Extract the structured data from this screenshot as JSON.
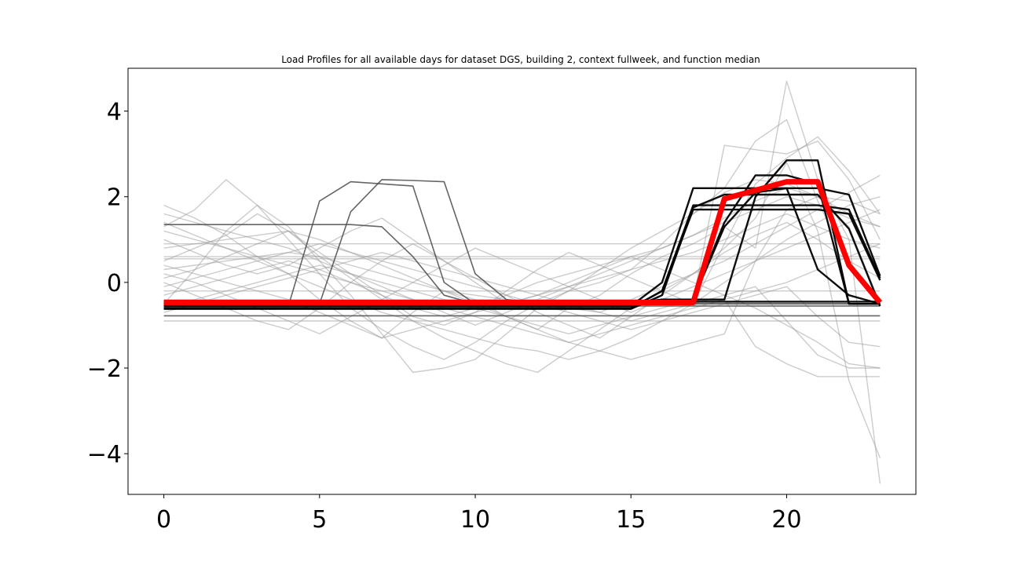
{
  "chart_data": {
    "type": "line",
    "title": "Load Profiles for all available days for dataset DGS, building 2, context fullweek, and function median",
    "xlabel": "",
    "ylabel": "",
    "xlim": [
      -1.15,
      24.15
    ],
    "ylim": [
      -4.95,
      5.0
    ],
    "x_ticks": [
      0,
      5,
      10,
      15,
      20
    ],
    "y_ticks": [
      -4,
      -2,
      0,
      2,
      4
    ],
    "x_tick_labels": [
      "0",
      "5",
      "10",
      "15",
      "20"
    ],
    "y_tick_labels": [
      "−4",
      "−2",
      "0",
      "2",
      "4"
    ],
    "grid": false,
    "legend": "none",
    "x": [
      0,
      1,
      2,
      3,
      4,
      5,
      6,
      7,
      8,
      9,
      10,
      11,
      12,
      13,
      14,
      15,
      16,
      17,
      18,
      19,
      20,
      21,
      22,
      23
    ],
    "colors": {
      "background_series": "#9a9a9a",
      "dark_series": "#000000",
      "medium_series": "#4a4a4a",
      "median": "#ff0000"
    },
    "series": [
      {
        "style": "median",
        "values": [
          -0.47,
          -0.47,
          -0.47,
          -0.47,
          -0.47,
          -0.47,
          -0.47,
          -0.47,
          -0.47,
          -0.47,
          -0.47,
          -0.47,
          -0.47,
          -0.47,
          -0.47,
          -0.47,
          -0.47,
          -0.47,
          1.95,
          2.15,
          2.35,
          2.35,
          0.4,
          -0.47
        ]
      },
      {
        "style": "dark",
        "values": [
          -0.6,
          -0.6,
          -0.6,
          -0.6,
          -0.6,
          -0.6,
          -0.6,
          -0.6,
          -0.6,
          -0.6,
          -0.6,
          -0.6,
          -0.6,
          -0.6,
          -0.6,
          -0.6,
          -0.2,
          1.8,
          1.8,
          1.8,
          1.8,
          1.8,
          1.7,
          0.1
        ]
      },
      {
        "style": "dark",
        "values": [
          -0.55,
          -0.55,
          -0.55,
          -0.55,
          -0.55,
          -0.55,
          -0.55,
          -0.55,
          -0.55,
          -0.55,
          -0.55,
          -0.55,
          -0.55,
          -0.55,
          -0.55,
          -0.55,
          0.0,
          2.2,
          2.2,
          2.2,
          2.2,
          2.2,
          2.05,
          0.15
        ]
      },
      {
        "style": "dark",
        "values": [
          -0.5,
          -0.5,
          -0.5,
          -0.5,
          -0.5,
          -0.5,
          -0.5,
          -0.5,
          -0.5,
          -0.5,
          -0.5,
          -0.5,
          -0.5,
          -0.5,
          -0.5,
          -0.5,
          -0.4,
          -0.4,
          1.4,
          2.5,
          2.5,
          2.3,
          -0.5,
          -0.5
        ]
      },
      {
        "style": "dark",
        "values": [
          -0.5,
          -0.5,
          -0.5,
          -0.5,
          -0.5,
          -0.5,
          -0.5,
          -0.5,
          -0.5,
          -0.5,
          -0.5,
          -0.5,
          -0.5,
          -0.5,
          -0.5,
          -0.5,
          -0.45,
          -0.4,
          -0.4,
          2.0,
          2.85,
          2.85,
          -0.5,
          -0.5
        ]
      },
      {
        "style": "dark",
        "values": [
          -0.6,
          -0.6,
          -0.6,
          -0.6,
          -0.6,
          -0.6,
          -0.6,
          -0.6,
          -0.6,
          -0.6,
          -0.6,
          -0.6,
          -0.6,
          -0.6,
          -0.6,
          -0.6,
          -0.2,
          1.7,
          1.7,
          1.7,
          1.7,
          1.7,
          1.6,
          0.05
        ]
      },
      {
        "style": "dark",
        "values": [
          -0.5,
          -0.5,
          -0.5,
          -0.5,
          -0.5,
          -0.5,
          -0.5,
          -0.5,
          -0.5,
          -0.5,
          -0.5,
          -0.5,
          -0.5,
          -0.5,
          -0.5,
          -0.5,
          -0.4,
          -0.4,
          1.3,
          2.1,
          2.2,
          0.3,
          -0.3,
          -0.5
        ]
      },
      {
        "style": "dark",
        "values": [
          -0.45,
          -0.45,
          -0.45,
          -0.45,
          -0.45,
          -0.45,
          -0.45,
          -0.45,
          -0.45,
          -0.45,
          -0.45,
          -0.45,
          -0.45,
          -0.45,
          -0.45,
          -0.45,
          -0.45,
          -0.45,
          -0.45,
          -0.45,
          -0.45,
          -0.45,
          -0.45,
          -0.45
        ]
      },
      {
        "style": "dark",
        "values": [
          -0.62,
          -0.62,
          -0.62,
          -0.62,
          -0.62,
          -0.62,
          -0.62,
          -0.62,
          -0.62,
          -0.62,
          -0.62,
          -0.62,
          -0.62,
          -0.62,
          -0.62,
          -0.62,
          -0.3,
          1.75,
          2.05,
          2.05,
          2.05,
          2.05,
          1.25,
          -0.55
        ]
      },
      {
        "style": "medium",
        "values": [
          -0.5,
          -0.5,
          -0.5,
          -0.5,
          -0.5,
          -0.5,
          1.65,
          2.4,
          2.38,
          2.35,
          0.2,
          -0.4,
          -0.5,
          -0.5,
          -0.5,
          -0.5,
          -0.5,
          -0.5,
          -0.5,
          -0.5,
          -0.5,
          -0.5,
          -0.5,
          -0.5
        ]
      },
      {
        "style": "medium",
        "values": [
          -0.55,
          -0.55,
          -0.55,
          -0.55,
          -0.55,
          1.9,
          2.35,
          2.3,
          2.25,
          0.0,
          -0.5,
          -0.55,
          -0.55,
          -0.55,
          -0.55,
          -0.55,
          -0.55,
          -0.55,
          -0.55,
          -0.55,
          -0.55,
          -0.55,
          -0.55,
          -0.55
        ]
      },
      {
        "style": "medium",
        "values": [
          1.35,
          1.35,
          1.35,
          1.35,
          1.35,
          1.35,
          1.35,
          1.3,
          0.6,
          -0.3,
          -0.5,
          -0.5,
          -0.5,
          -0.5,
          -0.5,
          -0.5,
          -0.5,
          -0.5,
          -0.5,
          -0.5,
          -0.5,
          -0.5,
          -0.5,
          -0.5
        ]
      },
      {
        "style": "medium",
        "values": [
          -0.78,
          -0.78,
          -0.78,
          -0.78,
          -0.78,
          -0.78,
          -0.78,
          -0.78,
          -0.78,
          -0.78,
          -0.78,
          -0.78,
          -0.78,
          -0.78,
          -0.78,
          -0.78,
          -0.78,
          -0.78,
          -0.78,
          -0.78,
          -0.78,
          -0.78,
          -0.78,
          -0.78
        ]
      },
      {
        "style": "light",
        "values": [
          1.8,
          1.5,
          1.1,
          0.6,
          0.2,
          -0.4,
          -0.9,
          -1.3,
          -0.7,
          -0.2,
          -0.4,
          -0.8,
          -1.1,
          -0.6,
          -0.3,
          0.2,
          0.6,
          0.9,
          1.3,
          0.8,
          4.7,
          2.4,
          1.0,
          -4.7
        ]
      },
      {
        "style": "light",
        "values": [
          1.3,
          1.7,
          2.4,
          1.8,
          1.0,
          0.2,
          -0.6,
          -1.1,
          -1.5,
          -1.8,
          -1.4,
          -0.9,
          -0.5,
          -0.2,
          0.0,
          0.3,
          0.9,
          1.6,
          2.2,
          3.3,
          3.8,
          1.9,
          0.4,
          -0.4
        ]
      },
      {
        "style": "light",
        "values": [
          0.5,
          0.8,
          1.1,
          1.6,
          1.2,
          0.6,
          0.1,
          -0.4,
          -0.9,
          -1.3,
          -1.6,
          -1.9,
          -2.1,
          -1.6,
          -1.1,
          -0.6,
          -0.2,
          0.2,
          0.8,
          1.5,
          2.8,
          1.2,
          -2.3,
          -4.1
        ]
      },
      {
        "style": "light",
        "values": [
          -0.5,
          0.3,
          1.2,
          1.8,
          1.3,
          0.5,
          -0.3,
          -1.2,
          -2.1,
          -2.0,
          -1.8,
          -1.2,
          -0.6,
          -0.2,
          0.3,
          0.8,
          1.2,
          1.6,
          2.1,
          2.4,
          2.3,
          2.0,
          1.3,
          -0.5
        ]
      },
      {
        "style": "light",
        "values": [
          0.3,
          0.4,
          0.5,
          0.6,
          0.7,
          0.6,
          0.4,
          0.2,
          0.0,
          -0.2,
          -0.3,
          -0.4,
          -0.5,
          -0.6,
          -0.7,
          -0.4,
          -0.1,
          0.2,
          0.5,
          0.9,
          1.3,
          1.7,
          2.1,
          2.5
        ]
      },
      {
        "style": "light",
        "values": [
          1.4,
          1.1,
          0.8,
          0.5,
          0.2,
          -0.1,
          -0.4,
          -0.7,
          -0.9,
          -1.1,
          -1.3,
          -1.5,
          -1.6,
          -1.8,
          -1.6,
          -1.3,
          -0.9,
          -0.5,
          0.0,
          0.5,
          1.0,
          1.4,
          1.8,
          2.0
        ]
      },
      {
        "style": "light",
        "values": [
          0.6,
          0.6,
          0.6,
          0.6,
          0.6,
          0.6,
          0.6,
          0.6,
          0.6,
          0.6,
          0.6,
          0.6,
          0.6,
          0.6,
          0.6,
          0.6,
          0.6,
          0.6,
          0.6,
          0.6,
          0.6,
          0.6,
          0.6,
          0.6
        ]
      },
      {
        "style": "light",
        "values": [
          -0.9,
          -0.9,
          -0.9,
          -0.9,
          -0.9,
          -0.9,
          -0.9,
          -0.9,
          -0.9,
          -0.9,
          -0.9,
          -0.9,
          -0.9,
          -0.9,
          -0.9,
          -0.9,
          -0.9,
          -0.9,
          -0.9,
          -0.9,
          -0.9,
          -0.9,
          -0.9,
          -0.9
        ]
      },
      {
        "style": "light",
        "values": [
          0.1,
          0.3,
          0.6,
          0.9,
          1.2,
          0.7,
          0.2,
          -0.3,
          -0.8,
          -1.0,
          -0.7,
          -0.2,
          0.3,
          0.7,
          0.4,
          0.1,
          -0.2,
          -0.5,
          0.9,
          2.3,
          2.9,
          3.4,
          2.6,
          1.6
        ]
      },
      {
        "style": "light",
        "values": [
          0.0,
          -0.3,
          -0.6,
          -0.9,
          -1.1,
          -0.6,
          0.0,
          0.5,
          0.9,
          0.5,
          0.1,
          -0.3,
          -0.7,
          -1.0,
          -1.3,
          -0.8,
          -0.3,
          0.2,
          0.7,
          1.1,
          1.4,
          1.0,
          0.5,
          0.1
        ]
      },
      {
        "style": "light",
        "values": [
          1.0,
          0.7,
          0.4,
          0.2,
          0.4,
          0.8,
          1.2,
          1.5,
          1.0,
          0.5,
          0.0,
          -0.5,
          -0.3,
          0.0,
          0.3,
          0.6,
          0.3,
          0.0,
          -0.3,
          -0.6,
          -1.0,
          -1.4,
          -1.9,
          -2.0
        ]
      },
      {
        "style": "light",
        "values": [
          -0.3,
          -0.1,
          0.1,
          0.3,
          0.5,
          0.3,
          0.0,
          -0.3,
          -0.6,
          -0.8,
          -0.6,
          -0.3,
          0.0,
          0.2,
          0.4,
          0.6,
          0.8,
          1.1,
          1.5,
          1.9,
          2.2,
          2.0,
          1.6,
          1.3
        ]
      },
      {
        "style": "light",
        "values": [
          0.8,
          0.9,
          1.0,
          1.1,
          1.2,
          1.0,
          0.7,
          0.4,
          0.1,
          -0.2,
          -0.5,
          -0.8,
          -1.1,
          -1.4,
          -1.2,
          -1.0,
          -0.8,
          -0.6,
          -0.4,
          -0.2,
          0.0,
          0.3,
          0.6,
          0.9
        ]
      },
      {
        "style": "light",
        "values": [
          -0.2,
          -0.2,
          -0.2,
          -0.2,
          -0.2,
          -0.2,
          -0.2,
          -0.2,
          -0.2,
          -0.2,
          -0.2,
          -0.2,
          -0.2,
          -0.2,
          -0.2,
          -0.2,
          -0.2,
          -0.2,
          -0.2,
          -0.2,
          -0.2,
          -0.2,
          -0.2,
          -0.2
        ]
      },
      {
        "style": "light",
        "values": [
          1.6,
          1.4,
          1.2,
          1.0,
          0.8,
          0.5,
          0.2,
          -0.1,
          -0.4,
          -0.7,
          -1.0,
          -0.7,
          -0.4,
          -0.1,
          0.2,
          0.5,
          0.8,
          1.1,
          1.4,
          1.7,
          2.0,
          1.8,
          1.5,
          1.3
        ]
      },
      {
        "style": "light",
        "values": [
          0.4,
          0.2,
          0.0,
          -0.2,
          -0.4,
          -0.7,
          -1.0,
          -1.3,
          -1.1,
          -0.9,
          -0.7,
          -0.5,
          -0.3,
          -0.1,
          0.1,
          0.3,
          0.5,
          0.7,
          1.0,
          1.3,
          1.6,
          1.3,
          1.0,
          0.8
        ]
      },
      {
        "style": "light",
        "values": [
          -0.6,
          -0.4,
          -0.2,
          0.0,
          0.2,
          0.4,
          0.2,
          0.0,
          -0.2,
          -0.4,
          -0.6,
          -0.8,
          -1.0,
          -1.2,
          -1.0,
          -0.8,
          -0.6,
          -0.4,
          3.2,
          3.1,
          3.0,
          3.3,
          2.4,
          1.0
        ]
      },
      {
        "style": "light",
        "values": [
          0.9,
          0.9,
          0.9,
          0.9,
          0.9,
          0.9,
          0.9,
          0.9,
          0.9,
          0.9,
          0.9,
          0.9,
          0.9,
          0.9,
          0.9,
          0.9,
          0.9,
          0.9,
          0.9,
          0.9,
          0.9,
          0.9,
          0.9,
          0.9
        ]
      },
      {
        "style": "light",
        "values": [
          -0.4,
          -0.4,
          -0.4,
          -0.4,
          -0.4,
          -0.4,
          -0.4,
          -0.4,
          -0.4,
          -0.4,
          -0.4,
          -0.4,
          -0.4,
          -0.4,
          -0.4,
          -0.4,
          -0.4,
          -0.4,
          -0.4,
          -1.5,
          -1.9,
          -2.2,
          -2.2,
          -2.2
        ]
      },
      {
        "style": "light",
        "values": [
          0.2,
          0.0,
          -0.3,
          -0.6,
          -0.9,
          -1.2,
          -0.8,
          -0.4,
          0.0,
          0.4,
          0.8,
          0.5,
          0.2,
          -0.1,
          -0.4,
          -0.7,
          -0.4,
          -0.1,
          0.2,
          0.5,
          0.8,
          1.1,
          1.4,
          1.7
        ]
      },
      {
        "style": "light",
        "values": [
          -0.1,
          0.1,
          0.3,
          0.5,
          0.7,
          0.9,
          0.7,
          0.5,
          0.3,
          0.1,
          -0.1,
          -0.3,
          -0.5,
          -0.7,
          -0.9,
          -1.1,
          -0.9,
          -0.7,
          -0.5,
          -0.3,
          -0.1,
          -0.8,
          -1.4,
          -1.5
        ]
      },
      {
        "style": "light",
        "values": [
          0.55,
          0.55,
          0.55,
          0.55,
          0.55,
          0.55,
          0.55,
          0.55,
          0.55,
          0.55,
          0.55,
          0.55,
          0.55,
          0.55,
          0.55,
          0.55,
          0.55,
          0.55,
          0.55,
          0.55,
          0.55,
          0.55,
          0.55,
          0.55
        ]
      },
      {
        "style": "light",
        "values": [
          -0.7,
          -0.5,
          -0.3,
          -0.1,
          0.1,
          0.3,
          0.5,
          0.7,
          0.5,
          0.3,
          0.1,
          -0.1,
          -0.3,
          -0.5,
          -0.7,
          -0.9,
          -0.7,
          -0.5,
          -0.3,
          -0.1,
          -0.9,
          -1.7,
          -2.0,
          -2.0
        ]
      },
      {
        "style": "light",
        "values": [
          1.2,
          1.0,
          0.8,
          0.6,
          0.4,
          0.2,
          0.0,
          -0.2,
          -0.4,
          -0.6,
          -0.8,
          -1.0,
          -1.2,
          -1.4,
          -1.6,
          -1.8,
          -1.6,
          -1.4,
          -1.2,
          0.5,
          1.7,
          2.0,
          1.9,
          1.6
        ]
      }
    ]
  }
}
